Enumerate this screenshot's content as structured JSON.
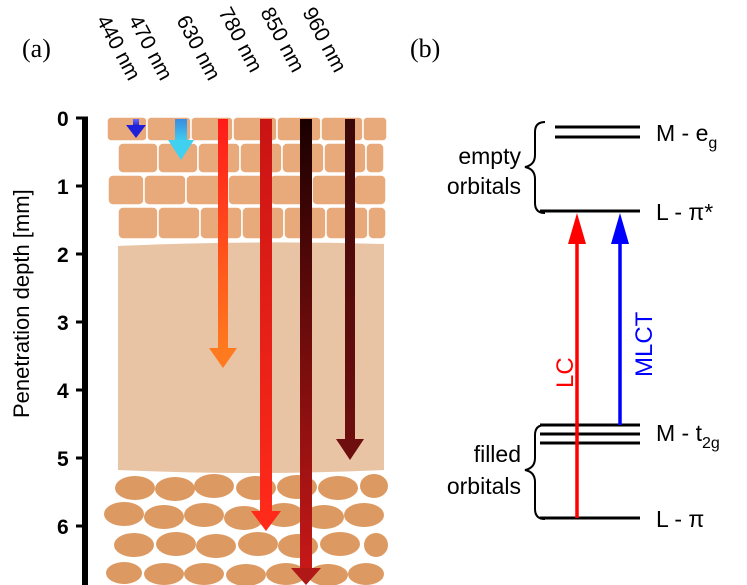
{
  "panel_a": {
    "label": "(a)",
    "axis_title": "Penetration depth [mm]",
    "ticks": [
      "0",
      "1",
      "2",
      "3",
      "4",
      "5",
      "6"
    ],
    "wavelengths": [
      {
        "label": "440 nm",
        "depth_mm": 0.3,
        "color": "#2a2ad8"
      },
      {
        "label": "470 nm",
        "depth_mm": 0.6,
        "color": "#39b0e8"
      },
      {
        "label": "630 nm",
        "depth_mm": 3.6,
        "color": "#ff4a1e"
      },
      {
        "label": "780 nm",
        "depth_mm": 6.1,
        "color": "#e81818"
      },
      {
        "label": "850 nm",
        "depth_mm": 6.7,
        "color": "#a81414"
      },
      {
        "label": "960 nm",
        "depth_mm": 5.0,
        "color": "#5a0a0a"
      }
    ]
  },
  "panel_b": {
    "label": "(b)",
    "levels": {
      "m_eg": "M - e",
      "m_eg_sub": "g",
      "l_pi_star": "L - π*",
      "m_t2g": "M - t",
      "m_t2g_sub": "2g",
      "l_pi": "L - π"
    },
    "groups": {
      "empty": [
        "empty",
        "orbitals"
      ],
      "filled": [
        "filled",
        "orbitals"
      ]
    },
    "transitions": {
      "lc": {
        "label": "LC",
        "color": "#ff0000"
      },
      "mlct": {
        "label": "MLCT",
        "color": "#0000ff"
      }
    }
  }
}
